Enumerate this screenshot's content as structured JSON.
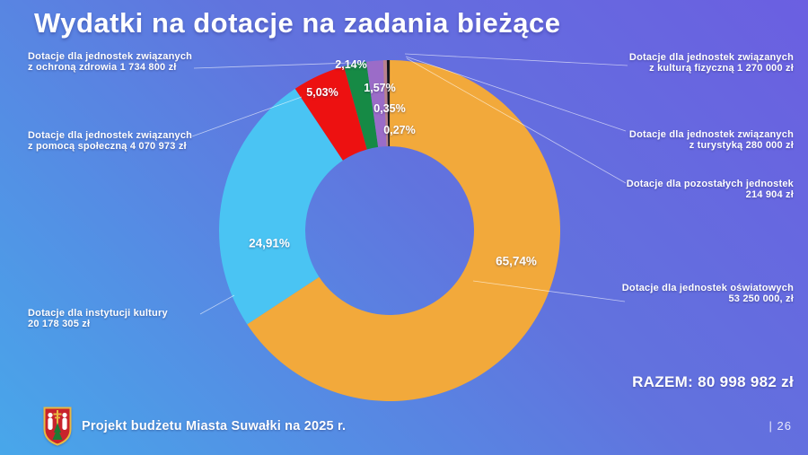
{
  "slide": {
    "title": "Wydatki na dotacje na zadania bieżące",
    "footer": "Projekt budżetu Miasta Suwałki na 2025 r.",
    "total_label": "RAZEM: 80 998 982 zł",
    "page_number": "| 26"
  },
  "chart_data": {
    "type": "pie",
    "subtype": "donut",
    "title": "Wydatki na dotacje na zadania bieżące",
    "total_value": 80998982,
    "total_label": "RAZEM: 80 998 982 zł",
    "start_angle_deg": 0,
    "direction": "clockwise",
    "segments": [
      {
        "name": "Dotacje dla jednostek oświatowych",
        "value": 53250000,
        "value_label": "53 250 000, zł",
        "pct": 65.74,
        "pct_label": "65,74%",
        "color": "#F2A93B"
      },
      {
        "name": "Dotacje dla instytucji kultury",
        "value": 20178305,
        "value_label": "20 178 305 zł",
        "pct": 24.91,
        "pct_label": "24,91%",
        "color": "#4AC4F3"
      },
      {
        "name": "Dotacje dla jednostek związanych z pomocą społeczną",
        "value": 4070973,
        "value_label": "4 070 973 zł",
        "pct": 5.03,
        "pct_label": "5,03%",
        "color": "#ED1111"
      },
      {
        "name": "Dotacje dla jednostek związanych z ochroną zdrowia",
        "value": 1734800,
        "value_label": "1 734 800 zł",
        "pct": 2.14,
        "pct_label": "2,14%",
        "color": "#168A45"
      },
      {
        "name": "Dotacje dla jednostek związanych z kulturą fizyczną",
        "value": 1270000,
        "value_label": "1 270 000 zł",
        "pct": 1.57,
        "pct_label": "1,57%",
        "color": "#9B6CC8"
      },
      {
        "name": "Dotacje dla jednostek związanych z turystyką",
        "value": 280000,
        "value_label": "280 000 zł",
        "pct": 0.35,
        "pct_label": "0,35%",
        "color": "#B9818C"
      },
      {
        "name": "Dotacje dla pozostałych jednostek",
        "value": 214904,
        "value_label": "214 904 zł",
        "pct": 0.27,
        "pct_label": "0,27%",
        "color": "#16161E"
      }
    ]
  },
  "labels": {
    "left": [
      {
        "line1": "Dotacje dla jednostek związanych",
        "line2": "z ochroną zdrowia 1 734 800 zł"
      },
      {
        "line1": "Dotacje dla jednostek związanych",
        "line2": "z pomocą społeczną 4 070 973 zł"
      },
      {
        "line1": "Dotacje dla instytucji kultury",
        "line2": "20 178 305 zł"
      }
    ],
    "right": [
      {
        "line1": "Dotacje dla jednostek związanych",
        "line2": "z kulturą fizyczną 1 270 000 zł"
      },
      {
        "line1": "Dotacje dla jednostek związanych",
        "line2": "z turystyką 280 000 zł"
      },
      {
        "line1": "Dotacje dla pozostałych jednostek",
        "line2": "214 904 zł"
      },
      {
        "line1": "Dotacje dla jednostek oświatowych",
        "line2": "53 250 000, zł"
      }
    ]
  },
  "colors": {
    "background_start": "#48A7EA",
    "background_end": "#6B5FE1",
    "text": "#FFFFFF",
    "callout_line": "rgba(255,255,255,0.6)"
  }
}
